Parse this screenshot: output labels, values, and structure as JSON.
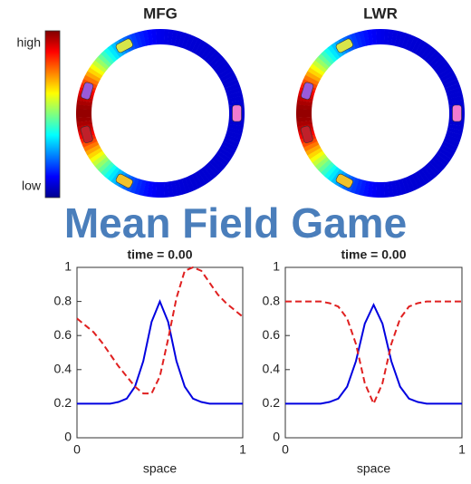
{
  "title": "Mean Field Game",
  "colorbar": {
    "high": "high",
    "low": "low"
  },
  "rings": [
    {
      "title": "MFG"
    },
    {
      "title": "LWR"
    }
  ],
  "chart_data": [
    {
      "type": "line",
      "title": "time = 0.00",
      "x_label": "space",
      "x": [
        0,
        0.05,
        0.1,
        0.15,
        0.2,
        0.25,
        0.3,
        0.35,
        0.4,
        0.45,
        0.5,
        0.55,
        0.6,
        0.65,
        0.7,
        0.75,
        0.8,
        0.85,
        0.9,
        0.95,
        1
      ],
      "series": [
        {
          "color": "#0000e0",
          "dash": false,
          "values": [
            0.2,
            0.2,
            0.2,
            0.2,
            0.2,
            0.21,
            0.23,
            0.3,
            0.45,
            0.68,
            0.8,
            0.68,
            0.45,
            0.3,
            0.23,
            0.21,
            0.2,
            0.2,
            0.2,
            0.2,
            0.2
          ]
        },
        {
          "color": "#e02020",
          "dash": true,
          "values": [
            0.7,
            0.66,
            0.62,
            0.56,
            0.49,
            0.42,
            0.36,
            0.3,
            0.26,
            0.26,
            0.36,
            0.58,
            0.82,
            0.98,
            1.0,
            0.98,
            0.91,
            0.84,
            0.79,
            0.75,
            0.71
          ]
        }
      ],
      "xlim": [
        0,
        1
      ],
      "xticks": [
        0,
        1
      ],
      "ylim": [
        0,
        1
      ],
      "yticks": [
        0,
        0.2,
        0.4,
        0.6,
        0.8,
        1
      ]
    },
    {
      "type": "line",
      "title": "time = 0.00",
      "x_label": "space",
      "x": [
        0,
        0.05,
        0.1,
        0.15,
        0.2,
        0.25,
        0.3,
        0.35,
        0.4,
        0.45,
        0.5,
        0.55,
        0.6,
        0.65,
        0.7,
        0.75,
        0.8,
        0.85,
        0.9,
        0.95,
        1
      ],
      "series": [
        {
          "color": "#0000e0",
          "dash": false,
          "values": [
            0.2,
            0.2,
            0.2,
            0.2,
            0.2,
            0.21,
            0.23,
            0.3,
            0.45,
            0.67,
            0.78,
            0.67,
            0.45,
            0.3,
            0.23,
            0.21,
            0.2,
            0.2,
            0.2,
            0.2,
            0.2
          ]
        },
        {
          "color": "#e02020",
          "dash": true,
          "values": [
            0.8,
            0.8,
            0.8,
            0.8,
            0.8,
            0.79,
            0.77,
            0.7,
            0.55,
            0.32,
            0.2,
            0.32,
            0.55,
            0.7,
            0.77,
            0.79,
            0.8,
            0.8,
            0.8,
            0.8,
            0.8
          ]
        }
      ],
      "xlim": [
        0,
        1
      ],
      "xticks": [
        0,
        1
      ],
      "ylim": [
        0,
        1
      ],
      "yticks": [
        0,
        0.2,
        0.4,
        0.6,
        0.8,
        1
      ]
    }
  ]
}
